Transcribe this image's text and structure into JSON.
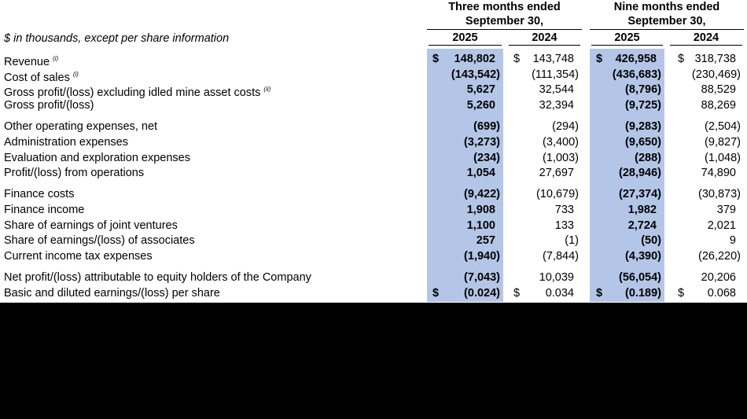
{
  "header": {
    "groups": [
      {
        "title": "Three months ended",
        "subtitle": "September 30,"
      },
      {
        "title": "Nine months ended",
        "subtitle": "September 30,"
      }
    ],
    "caption": "$ in thousands, except per share information",
    "years": [
      "2025",
      "2024",
      "2025",
      "2024"
    ]
  },
  "table": {
    "rows": [
      {
        "label": "Revenue",
        "note": "(i)",
        "currency": "$",
        "values": [
          "148,802",
          "143,748",
          "426,958",
          "318,738"
        ]
      },
      {
        "label": "Cost of sales",
        "note": "(i)",
        "values": [
          "(143,542)",
          "(111,354)",
          "(436,683)",
          "(230,469)"
        ]
      },
      {
        "label": "Gross profit/(loss) excluding idled mine asset costs",
        "note": "(ii)",
        "values": [
          "5,627",
          "32,544",
          "(8,796)",
          "88,529"
        ]
      },
      {
        "label": "Gross profit/(loss)",
        "values": [
          "5,260",
          "32,394",
          "(9,725)",
          "88,269"
        ]
      },
      {
        "label": "Other operating expenses, net",
        "values": [
          "(699)",
          "(294)",
          "(9,283)",
          "(2,504)"
        ]
      },
      {
        "label": "Administration expenses",
        "values": [
          "(3,273)",
          "(3,400)",
          "(9,650)",
          "(9,827)"
        ]
      },
      {
        "label": "Evaluation and exploration expenses",
        "values": [
          "(234)",
          "(1,003)",
          "(288)",
          "(1,048)"
        ]
      },
      {
        "label": "Profit/(loss) from operations",
        "values": [
          "1,054",
          "27,697",
          "(28,946)",
          "74,890"
        ]
      },
      {
        "label": "Finance costs",
        "values": [
          "(9,422)",
          "(10,679)",
          "(27,374)",
          "(30,873)"
        ]
      },
      {
        "label": "Finance income",
        "values": [
          "1,908",
          "733",
          "1,982",
          "379"
        ]
      },
      {
        "label": "Share of earnings of joint ventures",
        "values": [
          "1,100",
          "133",
          "2,724",
          "2,021"
        ]
      },
      {
        "label": "Share of earnings/(loss) of associates",
        "values": [
          "257",
          "(1)",
          "(50)",
          "9"
        ]
      },
      {
        "label": "Current income tax expenses",
        "values": [
          "(1,940)",
          "(7,844)",
          "(4,390)",
          "(26,220)"
        ]
      },
      {
        "label": "Net profit/(loss) attributable to equity holders of the Company",
        "values": [
          "(7,043)",
          "10,039",
          "(56,054)",
          "20,206"
        ]
      },
      {
        "label": "Basic and diluted earnings/(loss) per share",
        "currency": "$",
        "values": [
          "(0.024)",
          "0.034",
          "(0.189)",
          "0.068"
        ]
      }
    ]
  }
}
